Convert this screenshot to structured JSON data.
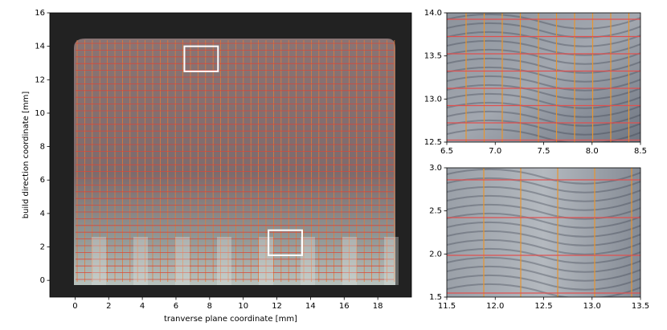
{
  "chart_data": [
    {
      "type": "image",
      "x_label": "tranverse plane coordinate [mm]",
      "y_label": "build direction coordinate [mm]",
      "xlim": [
        -1.5,
        20
      ],
      "ylim": [
        -1,
        16
      ],
      "xticks": [
        0,
        2,
        4,
        6,
        8,
        10,
        12,
        14,
        16,
        18
      ],
      "yticks": [
        0,
        2,
        4,
        6,
        8,
        10,
        12,
        14,
        16
      ]
    },
    {
      "type": "image",
      "xlim": [
        6.5,
        8.5
      ],
      "ylim": [
        12.5,
        14
      ],
      "xticks": [
        6.5,
        {
          "value": 7,
          "label": "7.0"
        },
        7.5,
        {
          "value": 8,
          "label": "8.0"
        },
        8.5
      ],
      "yticks": [
        12.5,
        {
          "value": 13,
          "label": "13.0"
        },
        13.5,
        {
          "value": 14,
          "label": "14.0"
        }
      ]
    },
    {
      "type": "image",
      "xlim": [
        11.5,
        13.5
      ],
      "ylim": [
        1.5,
        3
      ],
      "xticks": [
        11.5,
        {
          "value": 12,
          "label": "12.0"
        },
        12.5,
        {
          "value": 13,
          "label": "13.0"
        },
        13.5
      ],
      "yticks": [
        1.5,
        {
          "value": 2,
          "label": "2.0"
        },
        2.5,
        {
          "value": 3,
          "label": "3.0"
        }
      ]
    }
  ]
}
